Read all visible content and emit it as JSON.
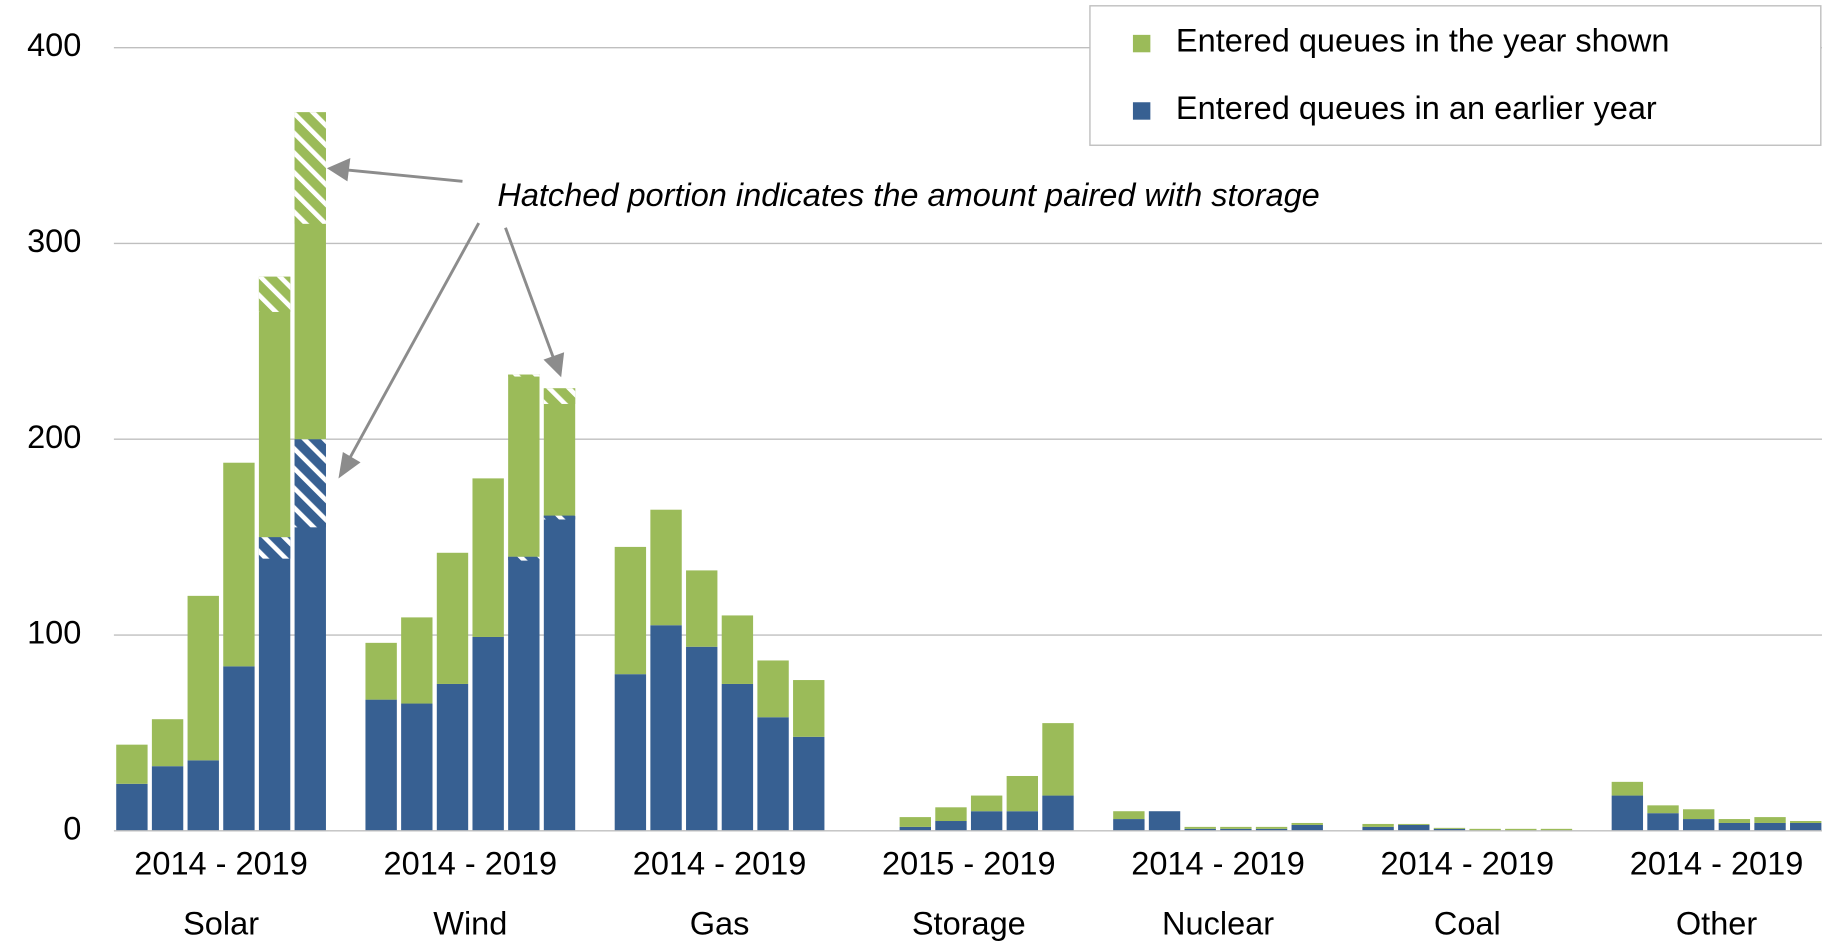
{
  "chart_data": {
    "type": "grouped-stacked-bar",
    "annotation": "Hatched portion indicates the amount paired with storage",
    "ylim": [
      0,
      400
    ],
    "yticks": [
      0,
      100,
      200,
      300,
      400
    ],
    "grid": true,
    "legend": "top-right",
    "groups": [
      {
        "name": "Solar",
        "period": "2014 - 2019"
      },
      {
        "name": "Wind",
        "period": "2014 - 2019"
      },
      {
        "name": "Gas",
        "period": "2014 - 2019"
      },
      {
        "name": "Storage",
        "period": "2015 - 2019"
      },
      {
        "name": "Nuclear",
        "period": "2014 - 2019"
      },
      {
        "name": "Coal",
        "period": "2014 - 2019"
      },
      {
        "name": "Other",
        "period": "2014 - 2019"
      }
    ],
    "series": [
      {
        "name": "Entered queues in the year shown",
        "color": "#9bbb59",
        "values": [
          [
            20,
            24,
            84,
            104,
            133,
            167
          ],
          [
            29,
            44,
            67,
            81,
            93,
            65
          ],
          [
            65,
            59,
            39,
            35,
            29,
            29
          ],
          [
            5,
            7,
            8,
            18,
            37
          ],
          [
            4,
            0,
            1,
            1,
            1,
            1
          ],
          [
            1.5,
            0.5,
            0.5,
            1,
            1,
            1
          ],
          [
            7,
            4,
            5,
            2,
            3,
            1
          ]
        ],
        "hatched": [
          [
            null,
            null,
            null,
            null,
            18,
            57
          ],
          [
            null,
            null,
            null,
            null,
            1,
            8
          ],
          [
            null,
            null,
            null,
            null,
            null,
            null
          ],
          [
            null,
            null,
            null,
            null,
            null
          ],
          [
            null,
            null,
            null,
            null,
            null,
            null
          ],
          [
            null,
            null,
            null,
            null,
            null,
            null
          ],
          [
            null,
            null,
            null,
            null,
            null,
            null
          ]
        ]
      },
      {
        "name": "Entered queues in an earlier year",
        "color": "#376092",
        "values": [
          [
            24,
            33,
            36,
            84,
            150,
            200
          ],
          [
            67,
            65,
            75,
            99,
            140,
            161
          ],
          [
            80,
            105,
            94,
            75,
            58,
            48
          ],
          [
            2,
            5,
            10,
            10,
            18
          ],
          [
            6,
            10,
            1,
            1,
            1,
            3
          ],
          [
            2,
            3,
            1,
            0,
            0,
            0
          ],
          [
            18,
            9,
            6,
            4,
            4,
            4
          ]
        ],
        "hatched": [
          [
            null,
            null,
            null,
            null,
            11,
            45
          ],
          [
            null,
            null,
            null,
            null,
            2,
            2
          ],
          [
            null,
            null,
            null,
            null,
            null,
            null
          ],
          [
            null,
            null,
            null,
            null,
            null
          ],
          [
            null,
            null,
            null,
            null,
            null,
            null
          ],
          [
            null,
            null,
            null,
            null,
            null,
            null
          ],
          [
            null,
            null,
            null,
            null,
            null,
            null
          ]
        ]
      }
    ]
  }
}
